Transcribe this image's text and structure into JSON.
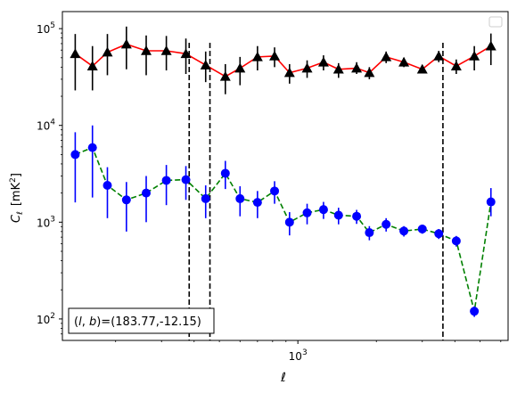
{
  "chart_data": {
    "type": "scatter",
    "title": "",
    "xlabel": "ℓ",
    "ylabel_main": "C",
    "ylabel_sub": "ℓ",
    "ylabel_units": "[mK",
    "ylabel_units_sup": "2",
    "ylabel_units_close": "]",
    "x_scale": "log",
    "y_scale": "log",
    "xlim": [
      125,
      6400
    ],
    "ylim": [
      60,
      150000
    ],
    "x_tick_major": [
      1000
    ],
    "x_tick_labels": [
      {
        "base": "10",
        "exp": "3"
      }
    ],
    "y_tick_major": [
      100,
      1000,
      10000,
      100000
    ],
    "y_tick_labels": [
      {
        "base": "10",
        "exp": "2"
      },
      {
        "base": "10",
        "exp": "3"
      },
      {
        "base": "10",
        "exp": "4"
      },
      {
        "base": "10",
        "exp": "5"
      }
    ],
    "vlines": [
      383,
      460,
      3600
    ],
    "legend": "top-right (empty)",
    "annotation": {
      "text_pre": "(",
      "text_l": "l",
      "text_mid": ", ",
      "text_b": "b",
      "text_post": ")=(183.77,-12.15)"
    },
    "series": [
      {
        "marker": "triangle",
        "marker_color": "#000000",
        "line_color": "#ff0000",
        "line_style": "solid",
        "points": [
          {
            "x": 140,
            "y": 55000,
            "lo": 23000,
            "hi": 88000
          },
          {
            "x": 163,
            "y": 41000,
            "lo": 23000,
            "hi": 66000
          },
          {
            "x": 186,
            "y": 57000,
            "lo": 33000,
            "hi": 88000
          },
          {
            "x": 220,
            "y": 69000,
            "lo": 38000,
            "hi": 105000
          },
          {
            "x": 262,
            "y": 59000,
            "lo": 33000,
            "hi": 85000
          },
          {
            "x": 313,
            "y": 59000,
            "lo": 37000,
            "hi": 84000
          },
          {
            "x": 372,
            "y": 55000,
            "lo": 34000,
            "hi": 79000
          },
          {
            "x": 443,
            "y": 42000,
            "lo": 28000,
            "hi": 58000
          },
          {
            "x": 527,
            "y": 32000,
            "lo": 21000,
            "hi": 43000
          },
          {
            "x": 600,
            "y": 39000,
            "lo": 26000,
            "hi": 51000
          },
          {
            "x": 700,
            "y": 51000,
            "lo": 37000,
            "hi": 66000
          },
          {
            "x": 814,
            "y": 52000,
            "lo": 40000,
            "hi": 64000
          },
          {
            "x": 929,
            "y": 35000,
            "lo": 27000,
            "hi": 43000
          },
          {
            "x": 1085,
            "y": 39000,
            "lo": 31000,
            "hi": 47000
          },
          {
            "x": 1254,
            "y": 45000,
            "lo": 37000,
            "hi": 53000
          },
          {
            "x": 1432,
            "y": 38000,
            "lo": 31000,
            "hi": 44000
          },
          {
            "x": 1680,
            "y": 39000,
            "lo": 34000,
            "hi": 45000
          },
          {
            "x": 1880,
            "y": 35000,
            "lo": 30000,
            "hi": 40000
          },
          {
            "x": 2180,
            "y": 51000,
            "lo": 44000,
            "hi": 58000
          },
          {
            "x": 2550,
            "y": 45000,
            "lo": 40000,
            "hi": 50000
          },
          {
            "x": 3000,
            "y": 38000,
            "lo": 35000,
            "hi": 42000
          },
          {
            "x": 3470,
            "y": 52000,
            "lo": 45000,
            "hi": 59000
          },
          {
            "x": 4050,
            "y": 41000,
            "lo": 34000,
            "hi": 48000
          },
          {
            "x": 4750,
            "y": 52000,
            "lo": 37000,
            "hi": 66000
          },
          {
            "x": 5500,
            "y": 66000,
            "lo": 42000,
            "hi": 89000
          }
        ]
      },
      {
        "marker": "circle",
        "marker_color": "#0000ff",
        "line_color": "#008000",
        "line_style": "dashed",
        "points": [
          {
            "x": 140,
            "y": 5000,
            "lo": 1600,
            "hi": 8500
          },
          {
            "x": 163,
            "y": 5900,
            "lo": 1800,
            "hi": 10000
          },
          {
            "x": 186,
            "y": 2400,
            "lo": 1100,
            "hi": 3700
          },
          {
            "x": 220,
            "y": 1700,
            "lo": 800,
            "hi": 2600
          },
          {
            "x": 262,
            "y": 2000,
            "lo": 1000,
            "hi": 3000
          },
          {
            "x": 313,
            "y": 2700,
            "lo": 1500,
            "hi": 3900
          },
          {
            "x": 372,
            "y": 2750,
            "lo": 1700,
            "hi": 3800
          },
          {
            "x": 443,
            "y": 1750,
            "lo": 1100,
            "hi": 2400
          },
          {
            "x": 527,
            "y": 3200,
            "lo": 2200,
            "hi": 4300
          },
          {
            "x": 600,
            "y": 1750,
            "lo": 1150,
            "hi": 2350
          },
          {
            "x": 700,
            "y": 1600,
            "lo": 1100,
            "hi": 2100
          },
          {
            "x": 814,
            "y": 2100,
            "lo": 1550,
            "hi": 2650
          },
          {
            "x": 929,
            "y": 1000,
            "lo": 730,
            "hi": 1270
          },
          {
            "x": 1085,
            "y": 1250,
            "lo": 950,
            "hi": 1550
          },
          {
            "x": 1254,
            "y": 1350,
            "lo": 1080,
            "hi": 1620
          },
          {
            "x": 1432,
            "y": 1180,
            "lo": 950,
            "hi": 1410
          },
          {
            "x": 1680,
            "y": 1150,
            "lo": 960,
            "hi": 1340
          },
          {
            "x": 1880,
            "y": 780,
            "lo": 650,
            "hi": 910
          },
          {
            "x": 2180,
            "y": 950,
            "lo": 800,
            "hi": 1100
          },
          {
            "x": 2550,
            "y": 810,
            "lo": 710,
            "hi": 910
          },
          {
            "x": 3000,
            "y": 850,
            "lo": 760,
            "hi": 940
          },
          {
            "x": 3470,
            "y": 760,
            "lo": 670,
            "hi": 850
          },
          {
            "x": 4050,
            "y": 640,
            "lo": 560,
            "hi": 720
          },
          {
            "x": 4750,
            "y": 120,
            "lo": 105,
            "hi": 135
          },
          {
            "x": 5500,
            "y": 1620,
            "lo": 1150,
            "hi": 2250
          }
        ]
      }
    ]
  }
}
